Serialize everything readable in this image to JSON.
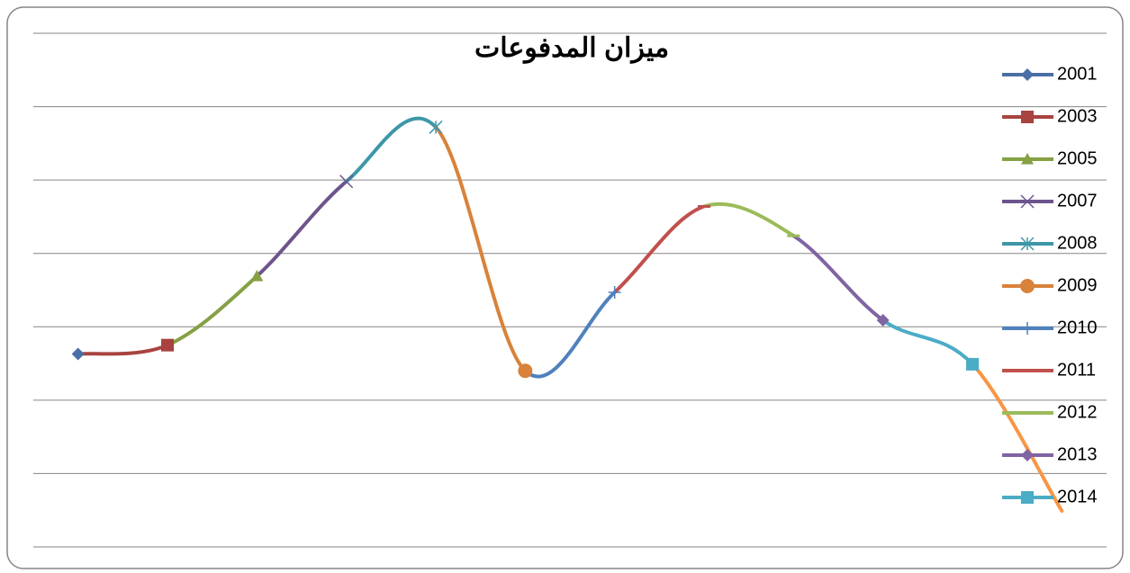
{
  "chart_data": {
    "type": "line",
    "title": "ميزان المدفوعات",
    "categories": [
      null,
      null,
      null,
      null,
      null,
      null,
      null,
      null,
      null,
      null,
      null,
      null
    ],
    "ylim": [
      0,
      7
    ],
    "yticks": [
      0,
      1,
      2,
      3,
      4,
      5,
      6,
      7
    ],
    "grid": true,
    "smooth": true,
    "legend": "right",
    "series": [
      {
        "name": "2001",
        "color": "#4a6fa5",
        "marker": "diamond",
        "values": [
          2.63,
          null,
          null,
          null,
          null,
          null,
          null,
          null,
          null,
          null,
          null,
          null
        ]
      },
      {
        "name": "2003",
        "color": "#a84340",
        "marker": "square",
        "values": [
          2.63,
          2.75,
          null,
          null,
          null,
          null,
          null,
          null,
          null,
          null,
          null,
          null
        ]
      },
      {
        "name": "2005",
        "color": "#86a044",
        "marker": "triangle",
        "values": [
          null,
          2.75,
          3.69,
          null,
          null,
          null,
          null,
          null,
          null,
          null,
          null,
          null
        ]
      },
      {
        "name": "2007",
        "color": "#6e548d",
        "marker": "x",
        "values": [
          null,
          null,
          3.69,
          4.98,
          null,
          null,
          null,
          null,
          null,
          null,
          null,
          null
        ]
      },
      {
        "name": "2008",
        "color": "#3d97a8",
        "marker": "star",
        "values": [
          null,
          null,
          null,
          4.98,
          5.72,
          null,
          null,
          null,
          null,
          null,
          null,
          null
        ]
      },
      {
        "name": "2009",
        "color": "#d8823a",
        "marker": "circle",
        "values": [
          null,
          null,
          null,
          null,
          5.72,
          2.4,
          null,
          null,
          null,
          null,
          null,
          null
        ]
      },
      {
        "name": "2010",
        "color": "#4f81bd",
        "marker": "plus",
        "values": [
          null,
          null,
          null,
          null,
          null,
          2.4,
          3.47,
          null,
          null,
          null,
          null,
          null
        ]
      },
      {
        "name": "2011",
        "color": "#c0504d",
        "marker": "dash",
        "values": [
          null,
          null,
          null,
          null,
          null,
          null,
          3.47,
          4.64,
          null,
          null,
          null,
          null
        ]
      },
      {
        "name": "2012",
        "color": "#9bbb59",
        "marker": "dash",
        "values": [
          null,
          null,
          null,
          null,
          null,
          null,
          null,
          4.64,
          4.24,
          null,
          null,
          null
        ]
      },
      {
        "name": "2013",
        "color": "#8064a2",
        "marker": "diamond",
        "values": [
          null,
          null,
          null,
          null,
          null,
          null,
          null,
          null,
          4.24,
          3.09,
          null,
          null
        ]
      },
      {
        "name": "2014",
        "color": "#4bacc6",
        "marker": "square",
        "values": [
          null,
          null,
          null,
          null,
          null,
          null,
          null,
          null,
          null,
          3.09,
          2.49,
          null
        ]
      },
      {
        "color": "#f79646",
        "marker": "none",
        "values": [
          null,
          null,
          null,
          null,
          null,
          null,
          null,
          null,
          null,
          null,
          2.49,
          0.49
        ]
      }
    ]
  }
}
